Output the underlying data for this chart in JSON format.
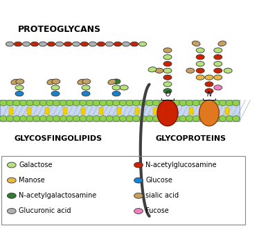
{
  "bg_color": "#ffffff",
  "membrane_color": "#c8d8f0",
  "title_proteoglycans": "PROTEOGLYCANS",
  "title_glycosfingolipids": "GLYCOSFINGOLIPIDS",
  "title_glycoproteins": "GLYCOPROTEINS",
  "colors": {
    "galactose": "#b7e17b",
    "manose": "#e8b840",
    "nacetylgalactosamine": "#2e7d2e",
    "glucuronic": "#b0b0b0",
    "nacetylglucosamine": "#cc2200",
    "glucose": "#1a80d0",
    "sialic": "#c8a060",
    "fucose": "#f080c0"
  },
  "lipid_head_color": "#92d050",
  "lipid_head_edge": "#4a7a20",
  "legend_items_left": [
    {
      "label": "Galactose",
      "color": "#b7e17b"
    },
    {
      "label": "Manose",
      "color": "#e8b840"
    },
    {
      "label": "N-acetylgalactosamine",
      "color": "#2e7d2e"
    },
    {
      "label": "Glucuronic acid",
      "color": "#b0b0b0"
    }
  ],
  "legend_items_right": [
    {
      "label": "N-acetylglucosamine",
      "color": "#cc2200"
    },
    {
      "label": "Glucose",
      "color": "#1a80d0"
    },
    {
      "label": "sialic acid",
      "color": "#c8a060"
    },
    {
      "label": "Fucose",
      "color": "#f080c0"
    }
  ]
}
